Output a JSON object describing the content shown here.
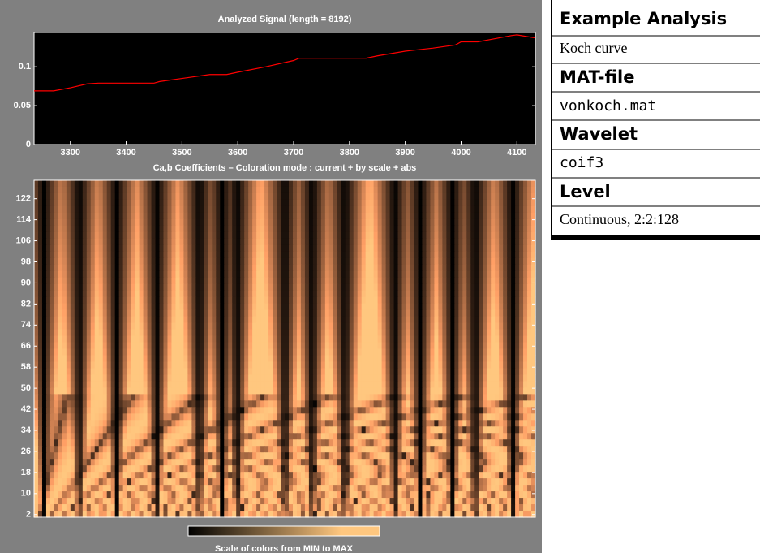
{
  "chart_data": [
    {
      "type": "line",
      "title": "Analyzed Signal  (length = 8192)",
      "x": [
        3235,
        3270,
        3300,
        3330,
        3350,
        3450,
        3460,
        3500,
        3530,
        3550,
        3580,
        3600,
        3650,
        3700,
        3710,
        3830,
        3850,
        3900,
        3950,
        3990,
        4000,
        4030,
        4060,
        4090,
        4100,
        4133
      ],
      "values": [
        0.069,
        0.069,
        0.073,
        0.078,
        0.079,
        0.079,
        0.081,
        0.085,
        0.088,
        0.09,
        0.09,
        0.093,
        0.1,
        0.108,
        0.111,
        0.111,
        0.114,
        0.12,
        0.124,
        0.128,
        0.132,
        0.132,
        0.136,
        0.14,
        0.141,
        0.137
      ],
      "color": "#ff0000",
      "xlim": [
        3235,
        4133
      ],
      "xticks": [
        3300,
        3400,
        3500,
        3600,
        3700,
        3800,
        3900,
        4000,
        4100
      ],
      "ylim": [
        0,
        0.144
      ],
      "yticks": [
        0,
        0.05,
        0.1
      ]
    },
    {
      "type": "heatmap",
      "title": "Ca,b Coefficients  – Coloration mode : current + by scale + abs",
      "ylim": [
        1,
        129
      ],
      "yticks": [
        2,
        10,
        18,
        26,
        34,
        42,
        50,
        58,
        66,
        74,
        82,
        90,
        98,
        106,
        114,
        122
      ],
      "colormap": "copper",
      "colorbar_label": "Scale of colors from MIN to MAX"
    }
  ],
  "panel": {
    "sections": [
      {
        "heading": "Example Analysis",
        "value": "Koch curve"
      },
      {
        "heading": "MAT-file",
        "value": "vonkoch.mat"
      },
      {
        "heading": "Wavelet",
        "value": "coif3"
      },
      {
        "heading": "Level",
        "value": "Continuous, 2:2:128"
      }
    ]
  }
}
